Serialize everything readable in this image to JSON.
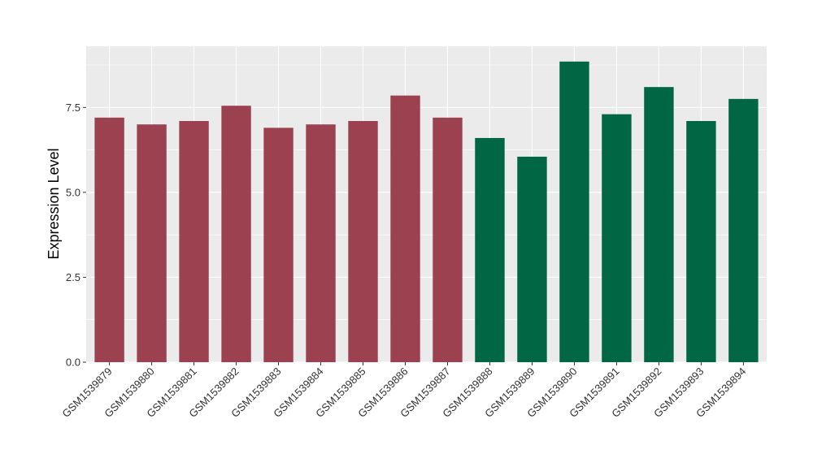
{
  "chart_data": {
    "type": "bar",
    "ylabel": "Expression Level",
    "xlabel": "",
    "ylim": [
      0,
      9.3
    ],
    "yticks": [
      0.0,
      2.5,
      5.0,
      7.5
    ],
    "ytick_labels": [
      "0.0",
      "2.5",
      "5.0",
      "7.5"
    ],
    "grid": true,
    "panel_color": "#ebebeb",
    "grid_color": "#ffffff",
    "categories": [
      "GSM1539879",
      "GSM1539880",
      "GSM1539881",
      "GSM1539882",
      "GSM1539883",
      "GSM1539884",
      "GSM1539885",
      "GSM1539886",
      "GSM1539887",
      "GSM1539888",
      "GSM1539889",
      "GSM1539890",
      "GSM1539891",
      "GSM1539892",
      "GSM1539893",
      "GSM1539894"
    ],
    "values": [
      7.2,
      7.0,
      7.1,
      7.55,
      6.9,
      7.0,
      7.1,
      7.85,
      7.2,
      6.6,
      6.05,
      8.85,
      7.3,
      8.1,
      7.1,
      7.75
    ],
    "bar_colors": [
      "#9b4150",
      "#9b4150",
      "#9b4150",
      "#9b4150",
      "#9b4150",
      "#9b4150",
      "#9b4150",
      "#9b4150",
      "#9b4150",
      "#006644",
      "#006644",
      "#006644",
      "#006644",
      "#006644",
      "#006644",
      "#006644"
    ]
  }
}
